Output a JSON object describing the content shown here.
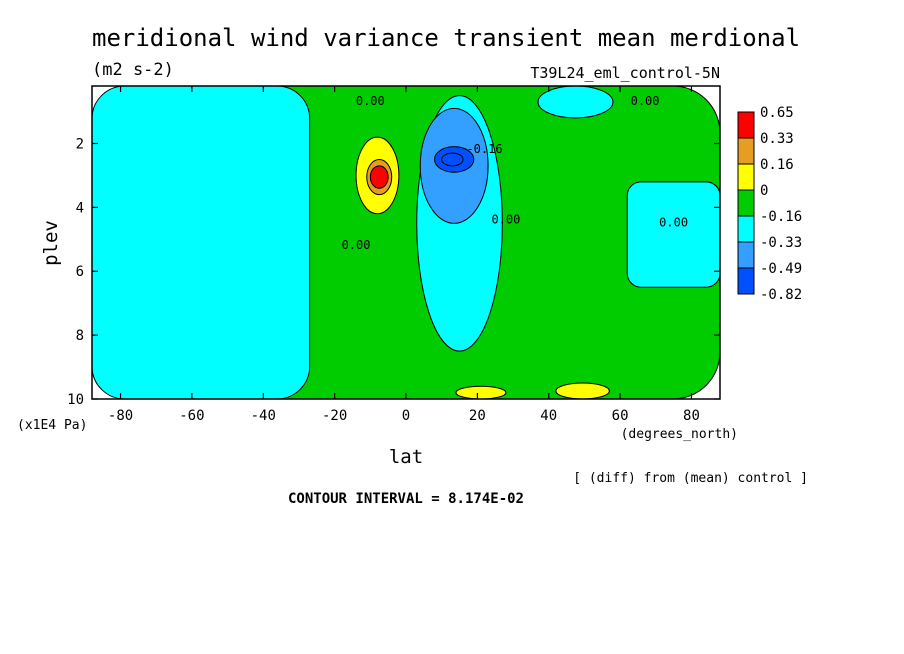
{
  "chart_data": {
    "type": "heatmap",
    "title": "meridional wind variance transient mean merdional",
    "units": "(m2 s-2)",
    "run_label": "T39L24_eml_control-5N",
    "xlabel": "lat",
    "x_units": "(degrees_north)",
    "ylabel": "plev",
    "y_units": "(x1E4 Pa)",
    "diff_note": "[ (diff) from (mean) control ]",
    "contour_interval": "CONTOUR INTERVAL = 8.174E-02",
    "xlim": [
      -88,
      88
    ],
    "ylim": [
      10,
      0.2
    ],
    "x_ticks": [
      -80,
      -60,
      -40,
      -20,
      0,
      20,
      40,
      60,
      80
    ],
    "y_ticks": [
      2,
      4,
      6,
      8,
      10
    ],
    "colorbar": {
      "labels": [
        "0.65",
        "0.33",
        "0.16",
        "0",
        "-0.16",
        "-0.33",
        "-0.49",
        "-0.82"
      ],
      "colors": [
        "#ff0000",
        "#e69d23",
        "#ffff00",
        "#00cc00",
        "#00ffff",
        "#33a0ff",
        "#0050ff"
      ]
    },
    "contour_labels": [
      {
        "text": "0.00",
        "lat": -10,
        "plev": 0.8
      },
      {
        "text": "0.00",
        "lat": 67,
        "plev": 0.8
      },
      {
        "text": "0.00",
        "lat": -14,
        "plev": 5.3
      },
      {
        "text": "0.00",
        "lat": 28,
        "plev": 4.5
      },
      {
        "text": "0.00",
        "lat": 75,
        "plev": 4.6
      },
      {
        "text": "-0.16",
        "lat": 22,
        "plev": 2.3
      }
    ],
    "regions": [
      {
        "value": "0",
        "lat_min": -88,
        "lat_max": 88,
        "plev_top": 0.2,
        "plev_bottom": 10
      },
      {
        "value": "-0.16",
        "lat_min": -88,
        "lat_max": -27,
        "plev_top": 0.2,
        "plev_bottom": 10
      },
      {
        "value": "-0.16",
        "lat_min": 3,
        "lat_max": 27,
        "plev_top": 0.5,
        "plev_bottom": 8.5
      },
      {
        "value": "-0.16",
        "lat_min": 37,
        "lat_max": 58,
        "plev_top": 0.2,
        "plev_bottom": 1.2
      },
      {
        "value": "-0.16",
        "lat_min": 62,
        "lat_max": 88,
        "plev_top": 3.2,
        "plev_bottom": 6.5
      },
      {
        "value": "-0.33",
        "lat_min": 4,
        "lat_max": 23,
        "plev_top": 0.9,
        "plev_bottom": 4.5
      },
      {
        "value": "-0.49",
        "lat_min": 8,
        "lat_max": 19,
        "plev_top": 2.1,
        "plev_bottom": 2.9
      },
      {
        "value": "-0.82",
        "lat_min": 10,
        "lat_max": 16,
        "plev_top": 2.3,
        "plev_bottom": 2.7
      },
      {
        "value": "0.16",
        "lat_min": -14,
        "lat_max": -2,
        "plev_top": 1.8,
        "plev_bottom": 4.2
      },
      {
        "value": "0.33",
        "lat_min": -11,
        "lat_max": -4,
        "plev_top": 2.5,
        "plev_bottom": 3.6
      },
      {
        "value": "0.65",
        "lat_min": -10,
        "lat_max": -5,
        "plev_top": 2.7,
        "plev_bottom": 3.4
      },
      {
        "value": "0.16",
        "lat_min": 14,
        "lat_max": 28,
        "plev_top": 9.6,
        "plev_bottom": 10
      },
      {
        "value": "0.16",
        "lat_min": 42,
        "lat_max": 57,
        "plev_top": 9.5,
        "plev_bottom": 10
      }
    ]
  }
}
